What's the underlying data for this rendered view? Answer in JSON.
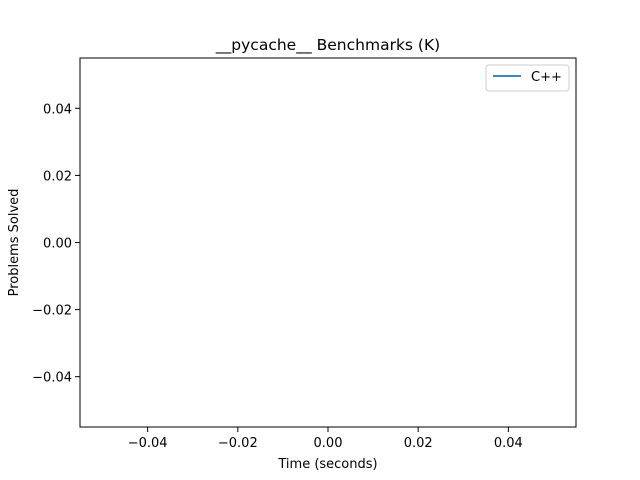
{
  "chart_data": {
    "type": "line",
    "title": "__pycache__ Benchmarks (K)",
    "xlabel": "Time (seconds)",
    "ylabel": "Problems Solved",
    "xlim": [
      -0.055,
      0.055
    ],
    "ylim": [
      -0.055,
      0.055
    ],
    "xticks": [
      -0.04,
      -0.02,
      0.0,
      0.02,
      0.04
    ],
    "xtick_labels": [
      "−0.04",
      "−0.02",
      "0.00",
      "0.02",
      "0.04"
    ],
    "yticks": [
      -0.04,
      -0.02,
      0.0,
      0.02,
      0.04
    ],
    "ytick_labels": [
      "−0.04",
      "−0.02",
      "0.00",
      "0.02",
      "0.04"
    ],
    "grid": false,
    "legend_position": "top-right",
    "series": [
      {
        "name": "C++",
        "color": "#1f77b4",
        "x": [],
        "y": []
      }
    ]
  }
}
